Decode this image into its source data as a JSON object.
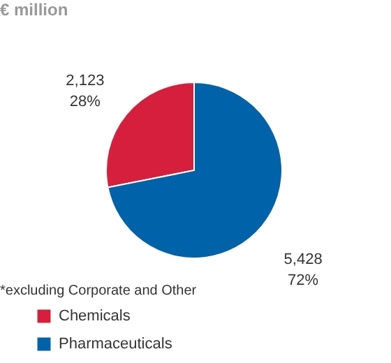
{
  "chart_data": {
    "type": "pie",
    "title": "€ million",
    "categories": [
      "Chemicals",
      "Pharmaceuticals"
    ],
    "values": [
      2123,
      5428
    ],
    "colors": [
      "#d51f3c",
      "#0062a8"
    ],
    "value_labels": [
      "2,123\n28%",
      "5,428\n72%"
    ],
    "annotations": [
      "*excluding Corporate and Other"
    ],
    "legend": "bottom left"
  }
}
